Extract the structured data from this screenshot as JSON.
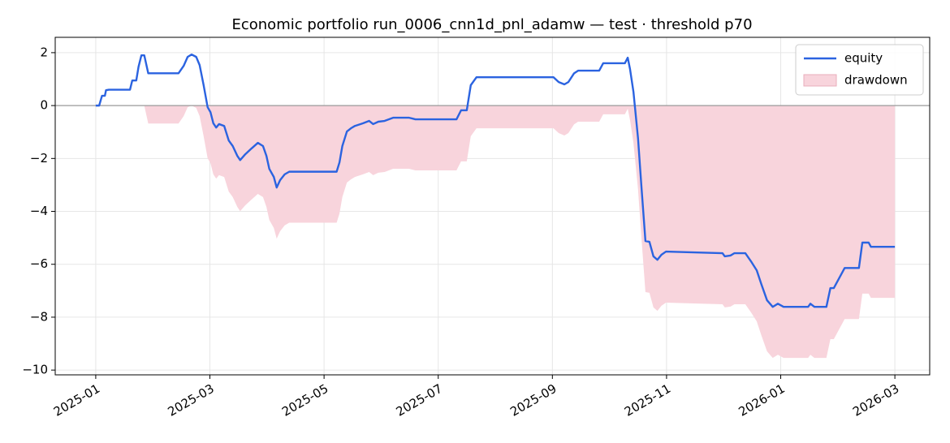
{
  "chart_data": {
    "type": "line",
    "title": "Economic portfolio run_0006_cnn1d_pnl_adamw — test · threshold p70",
    "x": [
      0,
      0.06,
      0.11,
      0.16,
      0.18,
      0.23,
      0.6,
      0.64,
      0.71,
      0.75,
      0.8,
      0.85,
      0.92,
      1.45,
      1.54,
      1.61,
      1.68,
      1.76,
      1.82,
      1.89,
      1.96,
      2.01,
      2.06,
      2.11,
      2.16,
      2.25,
      2.33,
      2.4,
      2.48,
      2.53,
      2.62,
      2.73,
      2.84,
      2.93,
      2.99,
      3.04,
      3.12,
      3.17,
      3.23,
      3.31,
      3.39,
      4.22,
      4.27,
      4.32,
      4.4,
      4.47,
      4.54,
      4.68,
      4.79,
      4.86,
      4.95,
      5.06,
      5.21,
      5.49,
      5.6,
      6.32,
      6.4,
      6.5,
      6.57,
      6.67,
      8.02,
      8.11,
      8.21,
      8.28,
      8.38,
      8.45,
      8.82,
      8.89,
      9.27,
      9.32,
      9.36,
      9.42,
      9.5,
      9.56,
      9.63,
      9.7,
      9.77,
      9.84,
      9.91,
      9.99,
      10.48,
      10.98,
      11.02,
      11.12,
      11.19,
      11.38,
      11.48,
      11.58,
      11.66,
      11.76,
      11.86,
      11.95,
      12.05,
      12.48,
      12.52,
      12.59,
      12.8,
      12.87,
      12.93,
      13.12,
      13.37,
      13.43,
      13.54,
      13.58,
      14.0
    ],
    "series": [
      {
        "name": "equity",
        "color": "#2b63e0",
        "values": [
          0,
          0,
          0.37,
          0.37,
          0.58,
          0.6,
          0.6,
          0.95,
          0.95,
          1.47,
          1.9,
          1.9,
          1.22,
          1.22,
          1.5,
          1.84,
          1.93,
          1.84,
          1.53,
          0.77,
          -0.06,
          -0.25,
          -0.67,
          -0.83,
          -0.7,
          -0.77,
          -1.32,
          -1.53,
          -1.9,
          -2.06,
          -1.84,
          -1.62,
          -1.41,
          -1.53,
          -1.9,
          -2.39,
          -2.7,
          -3.1,
          -2.82,
          -2.6,
          -2.5,
          -2.5,
          -2.15,
          -1.53,
          -0.98,
          -0.86,
          -0.77,
          -0.67,
          -0.58,
          -0.7,
          -0.61,
          -0.58,
          -0.46,
          -0.46,
          -0.52,
          -0.52,
          -0.18,
          -0.18,
          0.77,
          1.07,
          1.07,
          0.89,
          0.8,
          0.89,
          1.22,
          1.32,
          1.32,
          1.6,
          1.6,
          1.81,
          1.38,
          0.52,
          -1.23,
          -3.07,
          -5.12,
          -5.15,
          -5.7,
          -5.83,
          -5.64,
          -5.52,
          -5.55,
          -5.58,
          -5.7,
          -5.67,
          -5.58,
          -5.58,
          -5.89,
          -6.23,
          -6.75,
          -7.36,
          -7.61,
          -7.49,
          -7.61,
          -7.61,
          -7.49,
          -7.61,
          -7.61,
          -6.9,
          -6.9,
          -6.14,
          -6.14,
          -5.18,
          -5.18,
          -5.34,
          -5.34
        ]
      },
      {
        "name": "drawdown",
        "type": "area",
        "color": "#f8d4dc",
        "values": [
          0,
          0,
          0,
          0,
          0,
          0,
          0,
          0,
          0,
          0,
          0,
          0,
          -0.68,
          -0.68,
          -0.4,
          -0.06,
          0,
          -0.09,
          -0.4,
          -1.16,
          -1.99,
          -2.18,
          -2.6,
          -2.76,
          -2.63,
          -2.7,
          -3.25,
          -3.46,
          -3.83,
          -3.99,
          -3.77,
          -3.55,
          -3.34,
          -3.46,
          -3.83,
          -4.32,
          -4.63,
          -5.03,
          -4.75,
          -4.53,
          -4.43,
          -4.43,
          -4.08,
          -3.46,
          -2.91,
          -2.79,
          -2.7,
          -2.6,
          -2.51,
          -2.63,
          -2.54,
          -2.51,
          -2.39,
          -2.39,
          -2.45,
          -2.45,
          -2.11,
          -2.11,
          -1.16,
          -0.86,
          -0.86,
          -1.04,
          -1.13,
          -1.04,
          -0.71,
          -0.61,
          -0.61,
          -0.33,
          -0.33,
          -0.12,
          -0.55,
          -1.41,
          -3.16,
          -5.0,
          -7.05,
          -7.08,
          -7.63,
          -7.76,
          -7.57,
          -7.45,
          -7.48,
          -7.51,
          -7.63,
          -7.6,
          -7.51,
          -7.51,
          -7.82,
          -8.16,
          -8.68,
          -9.29,
          -9.54,
          -9.42,
          -9.54,
          -9.54,
          -9.42,
          -9.54,
          -9.54,
          -8.83,
          -8.83,
          -8.07,
          -8.07,
          -7.11,
          -7.11,
          -7.27,
          -7.27
        ]
      }
    ],
    "hline": 0,
    "xlim": [
      -0.71,
      14.61
    ],
    "xticks": [
      {
        "value": 0,
        "label": "2025-01"
      },
      {
        "value": 2,
        "label": "2025-03"
      },
      {
        "value": 4,
        "label": "2025-05"
      },
      {
        "value": 6,
        "label": "2025-07"
      },
      {
        "value": 8,
        "label": "2025-09"
      },
      {
        "value": 10,
        "label": "2025-11"
      },
      {
        "value": 12,
        "label": "2026-01"
      },
      {
        "value": 14,
        "label": "2026-03"
      }
    ],
    "ylim": [
      -10.18,
      2.58
    ],
    "yticks": [
      {
        "value": 2,
        "label": "2"
      },
      {
        "value": 0,
        "label": "0"
      },
      {
        "value": -2,
        "label": "−2"
      },
      {
        "value": -4,
        "label": "−4"
      },
      {
        "value": -6,
        "label": "−6"
      },
      {
        "value": -8,
        "label": "−8"
      },
      {
        "value": -10,
        "label": "−10"
      }
    ],
    "grid": true,
    "legend": "upper right"
  }
}
